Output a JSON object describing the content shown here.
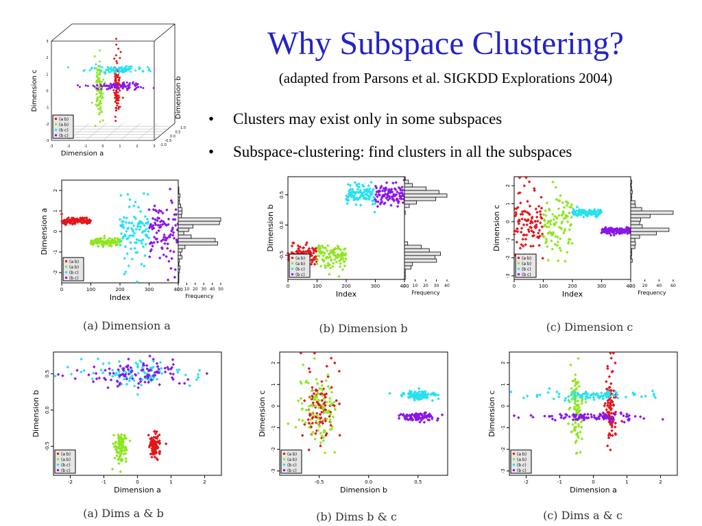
{
  "slide": {
    "title": "Why Subspace Clustering?",
    "subtitle": "(adapted from Parsons et al. SIGKDD Explorations 2004)",
    "bullets": [
      "Clusters may exist only in some subspaces",
      "Subspace-clustering: find clusters in all the subspaces"
    ]
  },
  "legend": [
    "(a b)",
    "(a b)",
    "(b c)",
    "(b c)"
  ],
  "colors": {
    "red": "#e3161b",
    "green": "#8fe621",
    "cyan": "#26e1ef",
    "purple": "#8a16e9"
  },
  "captions": {
    "p1": "(a) Dimension a",
    "p2": "(b) Dimension b",
    "p3": "(c) Dimension c",
    "p4": "(a) Dims a & b",
    "p5": "(b) Dims b & c",
    "p6": "(c) Dims a & c"
  },
  "chart_data": [
    {
      "type": "scatter",
      "id": "cube",
      "xlabel": "Dimension a",
      "ylabel": "Dimension c",
      "zlabel": "Dimension b",
      "x_ticks": [
        "-3",
        "-2",
        "-1",
        "0",
        "1",
        "2",
        "3"
      ],
      "y_ticks": [
        "-3",
        "-2",
        "-1",
        "0",
        "1",
        "2",
        "3"
      ],
      "z_ticks": [
        "-1.0",
        "-0.5",
        "0.0",
        "0.5",
        "1.0"
      ]
    },
    {
      "type": "scatter",
      "id": "p1",
      "xlabel": "Index",
      "ylabel": "Dimension a",
      "x_ticks": [
        "0",
        "100",
        "200",
        "300",
        "400"
      ],
      "y_ticks": [
        "-2",
        "-1",
        "0",
        "1",
        "2"
      ],
      "hist_label": "Frequency",
      "hist_ticks": [
        "0",
        "10",
        "20",
        "30",
        "40",
        "50"
      ],
      "xlim": [
        0,
        400
      ],
      "ylim": [
        -2.5,
        2.5
      ]
    },
    {
      "type": "scatter",
      "id": "p2",
      "xlabel": "Index",
      "ylabel": "Dimension b",
      "x_ticks": [
        "0",
        "100",
        "200",
        "300",
        "400"
      ],
      "y_ticks": [
        "-0.5",
        "0.0",
        "0.5"
      ],
      "hist_label": "Frequency",
      "hist_ticks": [
        "0",
        "10",
        "20",
        "30",
        "40"
      ],
      "xlim": [
        0,
        400
      ],
      "ylim": [
        -0.9,
        0.8
      ]
    },
    {
      "type": "scatter",
      "id": "p3",
      "xlabel": "Index",
      "ylabel": "Dimension c",
      "x_ticks": [
        "0",
        "100",
        "200",
        "300",
        "400"
      ],
      "y_ticks": [
        "-3",
        "-2",
        "-1",
        "0",
        "1",
        "2"
      ],
      "hist_label": "Frequency",
      "hist_ticks": [
        "0",
        "20",
        "40",
        "60"
      ],
      "xlim": [
        0,
        400
      ],
      "ylim": [
        -3.2,
        2.5
      ]
    },
    {
      "type": "scatter",
      "id": "p4",
      "xlabel": "Dimension a",
      "ylabel": "Dimension b",
      "x_ticks": [
        "-2",
        "-1",
        "0",
        "1",
        "2"
      ],
      "y_ticks": [
        "-0.5",
        "0.0",
        "0.5"
      ],
      "xlim": [
        -2.5,
        2.5
      ],
      "ylim": [
        -0.9,
        0.8
      ]
    },
    {
      "type": "scatter",
      "id": "p5",
      "xlabel": "Dimension b",
      "ylabel": "Dimension c",
      "x_ticks": [
        "-0.5",
        "0.0",
        "0.5"
      ],
      "y_ticks": [
        "-3",
        "-2",
        "-1",
        "0",
        "1",
        "2"
      ],
      "xlim": [
        -0.9,
        0.8
      ],
      "ylim": [
        -3.2,
        2.5
      ]
    },
    {
      "type": "scatter",
      "id": "p6",
      "xlabel": "Dimension a",
      "ylabel": "Dimension c",
      "x_ticks": [
        "-2",
        "-1",
        "0",
        "1",
        "2"
      ],
      "y_ticks": [
        "-3",
        "-2",
        "-1",
        "0",
        "1",
        "2"
      ],
      "xlim": [
        -2.5,
        2.5
      ],
      "ylim": [
        -3.2,
        2.5
      ]
    }
  ]
}
